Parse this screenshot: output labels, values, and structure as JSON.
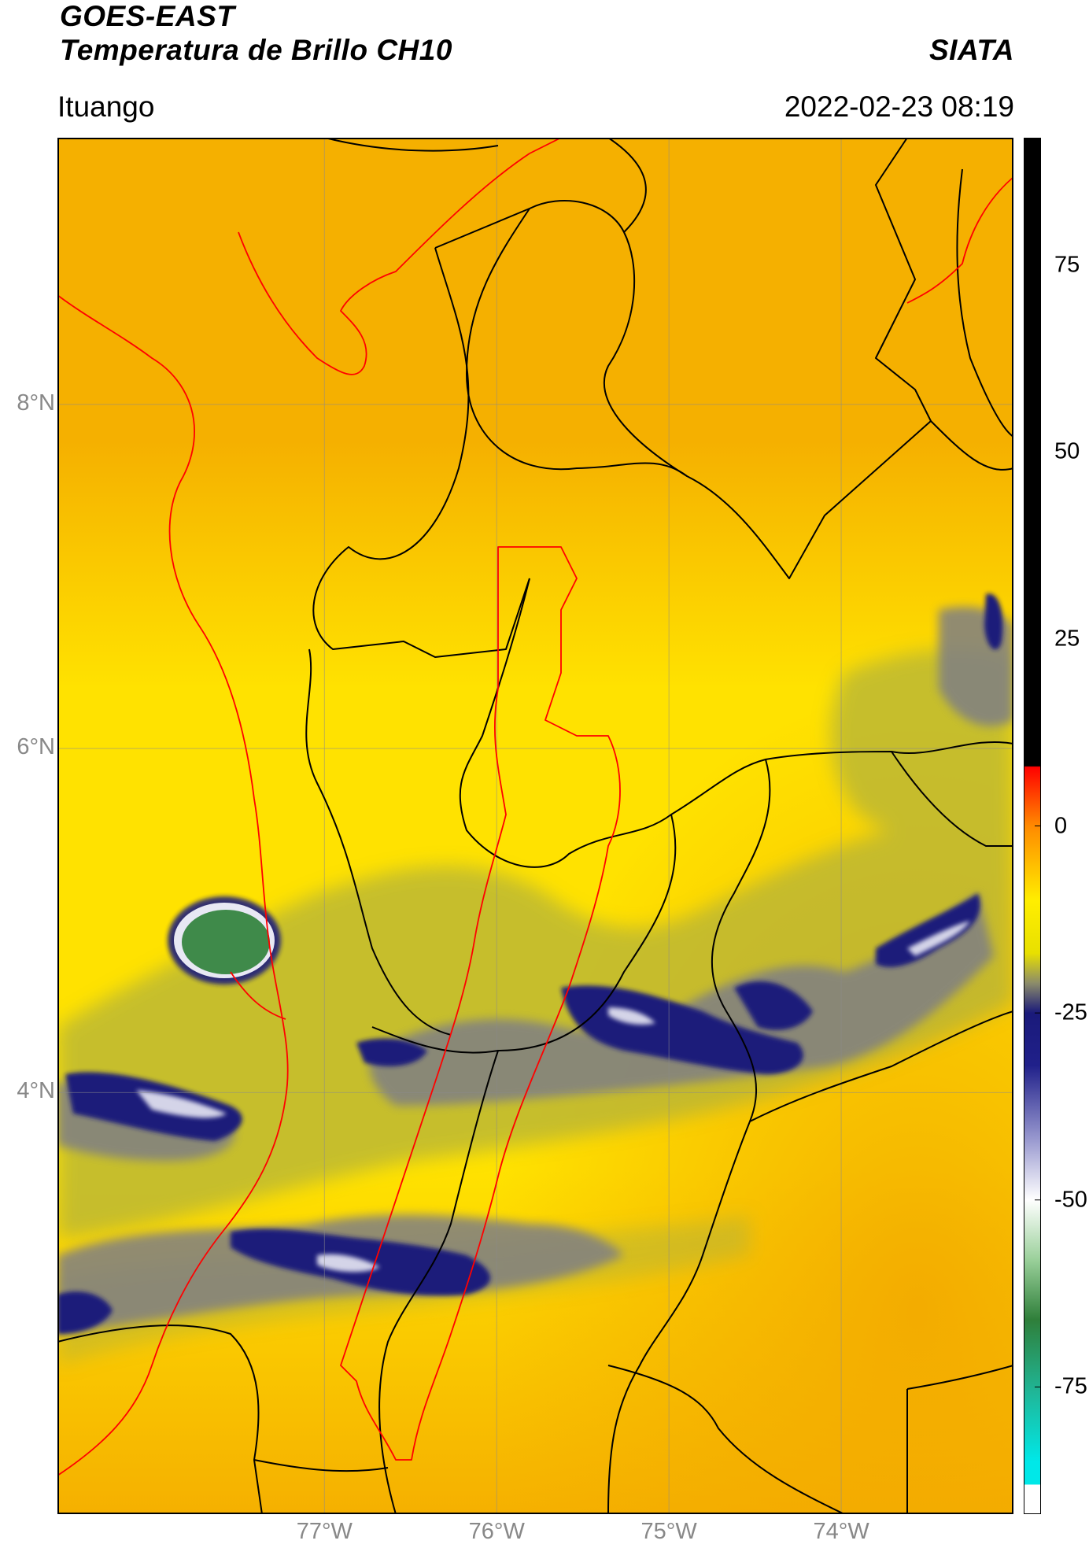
{
  "header": {
    "title_line1": "GOES-EAST",
    "title_line2": "Temperatura de Brillo CH10",
    "brand": "SIATA",
    "location": "Ituango",
    "timestamp": "2022-02-23 08:19"
  },
  "map": {
    "extent": {
      "lon_min": -78.55,
      "lon_max": -73.0,
      "lat_min": 1.55,
      "lat_max": 9.55
    },
    "lat_ticks": [
      {
        "value": 8,
        "label": "8°N"
      },
      {
        "value": 6,
        "label": "6°N"
      },
      {
        "value": 4,
        "label": "4°N"
      }
    ],
    "lon_ticks": [
      {
        "value": -77,
        "label": "77°W"
      },
      {
        "value": -76,
        "label": "76°W"
      },
      {
        "value": -75,
        "label": "75°W"
      },
      {
        "value": -74,
        "label": "74°W"
      }
    ],
    "colors": {
      "background_warm": "#f5b000",
      "background_mid": "#ffe200",
      "cloud_olive": "#b4b33a",
      "cloud_gray": "#7f7f84",
      "cloud_navy": "#1a1d7a",
      "cloud_white": "#e8e8f4",
      "cloud_green": "#3f8a4a",
      "border_black": "#000000",
      "border_red": "#ff0000"
    }
  },
  "colorbar": {
    "min": -92,
    "max": 92,
    "ticks": [
      {
        "value": 75,
        "label": "75"
      },
      {
        "value": 50,
        "label": "50"
      },
      {
        "value": 25,
        "label": "25"
      },
      {
        "value": 0,
        "label": "0"
      },
      {
        "value": -25,
        "label": "-25"
      },
      {
        "value": -50,
        "label": "-50"
      },
      {
        "value": -75,
        "label": "-75"
      }
    ],
    "stops": [
      {
        "value": 92,
        "color": "#000000"
      },
      {
        "value": 8,
        "color": "#000000"
      },
      {
        "value": 7.9,
        "color": "#ff0000"
      },
      {
        "value": 0,
        "color": "#ff8a00"
      },
      {
        "value": -10,
        "color": "#ffee00"
      },
      {
        "value": -17,
        "color": "#e8e000"
      },
      {
        "value": -21,
        "color": "#8c8c6a"
      },
      {
        "value": -25,
        "color": "#1a1a7a"
      },
      {
        "value": -32,
        "color": "#20208a"
      },
      {
        "value": -42,
        "color": "#9a9ad0"
      },
      {
        "value": -50,
        "color": "#ffffff"
      },
      {
        "value": -58,
        "color": "#9ad09a"
      },
      {
        "value": -66,
        "color": "#2f7f3a"
      },
      {
        "value": -76,
        "color": "#1fb89a"
      },
      {
        "value": -85,
        "color": "#00e8e8"
      },
      {
        "value": -88,
        "color": "#00e8e8"
      },
      {
        "value": -88.1,
        "color": "#ffffff"
      },
      {
        "value": -92,
        "color": "#ffffff"
      }
    ]
  }
}
